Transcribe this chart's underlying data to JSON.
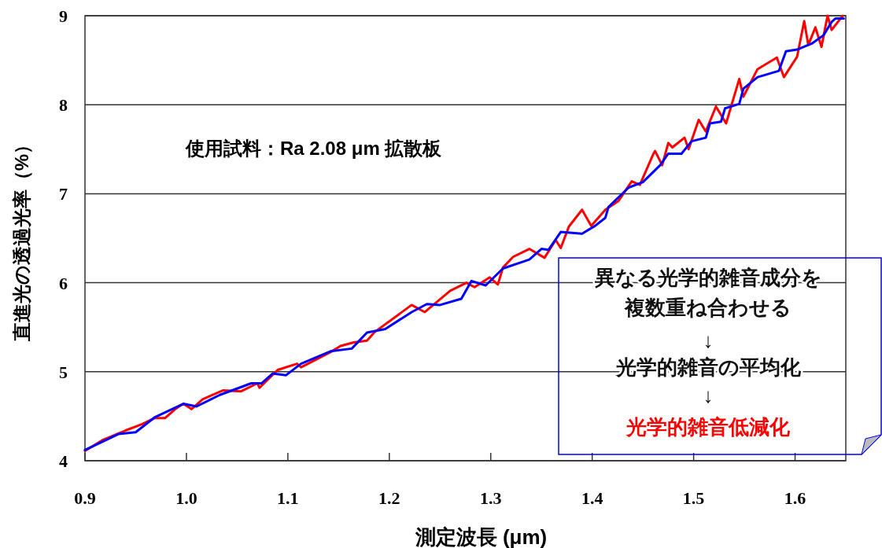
{
  "chart_data": {
    "type": "line",
    "xlabel": "測定波長 (μm)",
    "ylabel": "直進光の透過光率（%）",
    "xlim": [
      0.9,
      1.65
    ],
    "xticks": [
      0.9,
      {
        "value": 1.0,
        "label": "1.0"
      },
      1.1,
      1.2,
      1.3,
      1.4,
      1.5,
      1.6
    ],
    "ylim": [
      4,
      9
    ],
    "yticks": [
      4,
      5,
      6,
      7,
      8,
      9
    ],
    "grid": "y",
    "annotations": [
      "使用試料：Ra 2.08 μm 拡散板",
      "異なる光学的雑音成分を",
      "複数重ね合わせる",
      "↓",
      "光学的雑音の平均化",
      "↓",
      "光学的雑音低減化"
    ],
    "series": [
      {
        "color": "#ff0000",
        "x": [
          0.9,
          0.917,
          0.94,
          0.956,
          0.969,
          0.979,
          0.989,
          0.997,
          1.005,
          1.016,
          1.026,
          1.036,
          1.054,
          1.07,
          1.072,
          1.09,
          1.109,
          1.113,
          1.142,
          1.152,
          1.165,
          1.178,
          1.186,
          1.222,
          1.235,
          1.26,
          1.276,
          1.284,
          1.299,
          1.307,
          1.312,
          1.322,
          1.338,
          1.353,
          1.364,
          1.369,
          1.377,
          1.39,
          1.399,
          1.413,
          1.426,
          1.439,
          1.447,
          1.46,
          1.462,
          1.469,
          1.475,
          1.479,
          1.491,
          1.495,
          1.505,
          1.512,
          1.522,
          1.532,
          1.545,
          1.549,
          1.563,
          1.582,
          1.589,
          1.602,
          1.609,
          1.613,
          1.62,
          1.626,
          1.632,
          1.636,
          1.647
        ],
        "values": [
          4.11,
          4.23,
          4.34,
          4.41,
          4.48,
          4.48,
          4.58,
          4.64,
          4.58,
          4.69,
          4.74,
          4.79,
          4.78,
          4.87,
          4.82,
          5.02,
          5.09,
          5.05,
          5.22,
          5.29,
          5.33,
          5.35,
          5.45,
          5.75,
          5.67,
          5.91,
          6.0,
          5.95,
          6.06,
          5.98,
          6.17,
          6.29,
          6.38,
          6.28,
          6.48,
          6.39,
          6.63,
          6.82,
          6.64,
          6.82,
          6.92,
          7.14,
          7.1,
          7.44,
          7.48,
          7.32,
          7.57,
          7.52,
          7.63,
          7.5,
          7.83,
          7.7,
          7.98,
          7.79,
          8.29,
          8.09,
          8.4,
          8.53,
          8.31,
          8.54,
          8.94,
          8.67,
          8.87,
          8.65,
          9.0,
          8.84,
          9.0
        ]
      },
      {
        "color": "#0000ff",
        "x": [
          0.9,
          0.933,
          0.95,
          0.969,
          0.997,
          1.01,
          1.033,
          1.064,
          1.074,
          1.085,
          1.098,
          1.113,
          1.142,
          1.163,
          1.178,
          1.196,
          1.222,
          1.237,
          1.25,
          1.271,
          1.281,
          1.295,
          1.312,
          1.338,
          1.35,
          1.357,
          1.369,
          1.39,
          1.403,
          1.413,
          1.416,
          1.436,
          1.45,
          1.467,
          1.475,
          1.488,
          1.498,
          1.512,
          1.516,
          1.527,
          1.531,
          1.545,
          1.549,
          1.563,
          1.584,
          1.591,
          1.602,
          1.617,
          1.628,
          1.636,
          1.64,
          1.648
        ],
        "values": [
          4.12,
          4.3,
          4.32,
          4.49,
          4.64,
          4.61,
          4.74,
          4.87,
          4.87,
          4.98,
          4.96,
          5.09,
          5.23,
          5.26,
          5.44,
          5.48,
          5.67,
          5.76,
          5.75,
          5.82,
          6.02,
          5.97,
          6.16,
          6.26,
          6.38,
          6.37,
          6.57,
          6.55,
          6.64,
          6.73,
          6.85,
          7.07,
          7.13,
          7.32,
          7.45,
          7.45,
          7.59,
          7.63,
          7.79,
          7.81,
          7.96,
          8.01,
          8.18,
          8.31,
          8.38,
          8.6,
          8.62,
          8.69,
          8.78,
          8.93,
          8.97,
          8.97
        ]
      }
    ]
  }
}
